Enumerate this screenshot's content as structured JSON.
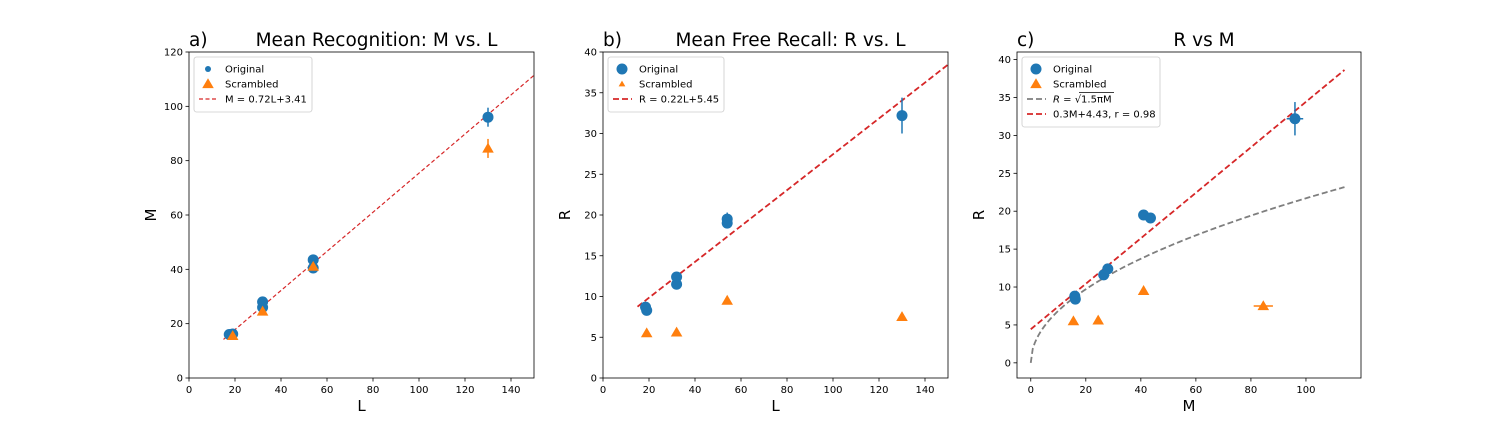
{
  "chart_data": [
    {
      "type": "scatter",
      "panel_letter": "a)",
      "title": "Mean Recognition: M vs. L",
      "xlabel": "L",
      "ylabel": "M",
      "xlim": [
        0,
        150
      ],
      "ylim": [
        0,
        120
      ],
      "xticks": [
        0,
        20,
        40,
        60,
        80,
        100,
        120,
        140
      ],
      "yticks": [
        0,
        20,
        40,
        60,
        80,
        100,
        120
      ],
      "legend_position": "upper-left",
      "series": [
        {
          "name": "Original",
          "kind": "points",
          "marker": "circle",
          "legend_marker": "small-circle",
          "color": "#1f77b4",
          "points": [
            {
              "x": 17.5,
              "y": 16.0
            },
            {
              "x": 19.0,
              "y": 16.2
            },
            {
              "x": 32.0,
              "y": 28.0
            },
            {
              "x": 32.0,
              "y": 26.0
            },
            {
              "x": 54.0,
              "y": 43.5
            },
            {
              "x": 54.0,
              "y": 40.5
            },
            {
              "x": 130.0,
              "y": 96.0,
              "yerr": 3.5
            }
          ]
        },
        {
          "name": "Scrambled",
          "kind": "points",
          "marker": "triangle",
          "color": "#ff7f0e",
          "points": [
            {
              "x": 19.0,
              "y": 15.5
            },
            {
              "x": 32.0,
              "y": 24.5
            },
            {
              "x": 54.0,
              "y": 41.0
            },
            {
              "x": 130.0,
              "y": 84.5,
              "yerr": 3.5
            }
          ]
        },
        {
          "name": "M = 0.72L+3.41",
          "kind": "line",
          "style": "dashed-fine",
          "color": "#d62728",
          "slope": 0.72,
          "intercept": 3.41,
          "x_range": [
            15,
            150
          ]
        }
      ]
    },
    {
      "type": "scatter",
      "panel_letter": "b)",
      "title": "Mean Free Recall: R vs. L",
      "xlabel": "L",
      "ylabel": "R",
      "xlim": [
        0,
        150
      ],
      "ylim": [
        0,
        40
      ],
      "xticks": [
        0,
        20,
        40,
        60,
        80,
        100,
        120,
        140
      ],
      "yticks": [
        0,
        5,
        10,
        15,
        20,
        25,
        30,
        35,
        40
      ],
      "legend_position": "upper-left",
      "series": [
        {
          "name": "Original",
          "kind": "points",
          "marker": "circle",
          "color": "#1f77b4",
          "points": [
            {
              "x": 18.5,
              "y": 8.7
            },
            {
              "x": 19.0,
              "y": 8.3
            },
            {
              "x": 32.0,
              "y": 12.4
            },
            {
              "x": 32.0,
              "y": 11.5
            },
            {
              "x": 54.0,
              "y": 19.5,
              "yerr": 0.8
            },
            {
              "x": 54.0,
              "y": 19.0
            },
            {
              "x": 130.0,
              "y": 32.2,
              "yerr": 2.2
            }
          ]
        },
        {
          "name": "Scrambled",
          "kind": "points",
          "marker": "triangle",
          "legend_marker": "small-triangle",
          "color": "#ff7f0e",
          "points": [
            {
              "x": 19.0,
              "y": 5.5
            },
            {
              "x": 32.0,
              "y": 5.6
            },
            {
              "x": 54.0,
              "y": 9.5
            },
            {
              "x": 130.0,
              "y": 7.5
            }
          ]
        },
        {
          "name": "R = 0.22L+5.45",
          "kind": "line",
          "style": "dashed",
          "color": "#d62728",
          "slope": 0.22,
          "intercept": 5.45,
          "x_range": [
            15,
            150
          ]
        }
      ]
    },
    {
      "type": "scatter",
      "panel_letter": "c)",
      "title": "R vs M",
      "xlabel": "M",
      "ylabel": "R",
      "xlim": [
        -5,
        120
      ],
      "ylim": [
        -2,
        41
      ],
      "xticks": [
        0,
        20,
        40,
        60,
        80,
        100
      ],
      "yticks": [
        0,
        5,
        10,
        15,
        20,
        25,
        30,
        35,
        40
      ],
      "legend_position": "upper-left",
      "series": [
        {
          "name": "Original",
          "kind": "points",
          "marker": "circle",
          "color": "#1f77b4",
          "points": [
            {
              "x": 16.0,
              "y": 8.8
            },
            {
              "x": 16.2,
              "y": 8.4
            },
            {
              "x": 26.5,
              "y": 11.6
            },
            {
              "x": 28.0,
              "y": 12.4
            },
            {
              "x": 41.0,
              "y": 19.5
            },
            {
              "x": 43.5,
              "y": 19.1
            },
            {
              "x": 96.0,
              "y": 32.2,
              "yerr": 2.2,
              "xerr": 3.0
            }
          ]
        },
        {
          "name": "Scrambled",
          "kind": "points",
          "marker": "triangle",
          "color": "#ff7f0e",
          "points": [
            {
              "x": 15.5,
              "y": 5.5
            },
            {
              "x": 24.5,
              "y": 5.6
            },
            {
              "x": 41.0,
              "y": 9.5
            },
            {
              "x": 84.5,
              "y": 7.5,
              "xerr": 3.5
            }
          ]
        },
        {
          "name": "R = √1.5πM",
          "kind": "curve",
          "function": "sqrt(1.5*pi*M)",
          "style": "dashed",
          "color": "#7f7f7f",
          "x_range": [
            0,
            114
          ]
        },
        {
          "name": "0.3M+4.43, r = 0.98",
          "kind": "line",
          "style": "dashed",
          "color": "#d62728",
          "slope": 0.3,
          "intercept": 4.43,
          "x_range": [
            0,
            114
          ]
        }
      ]
    }
  ]
}
